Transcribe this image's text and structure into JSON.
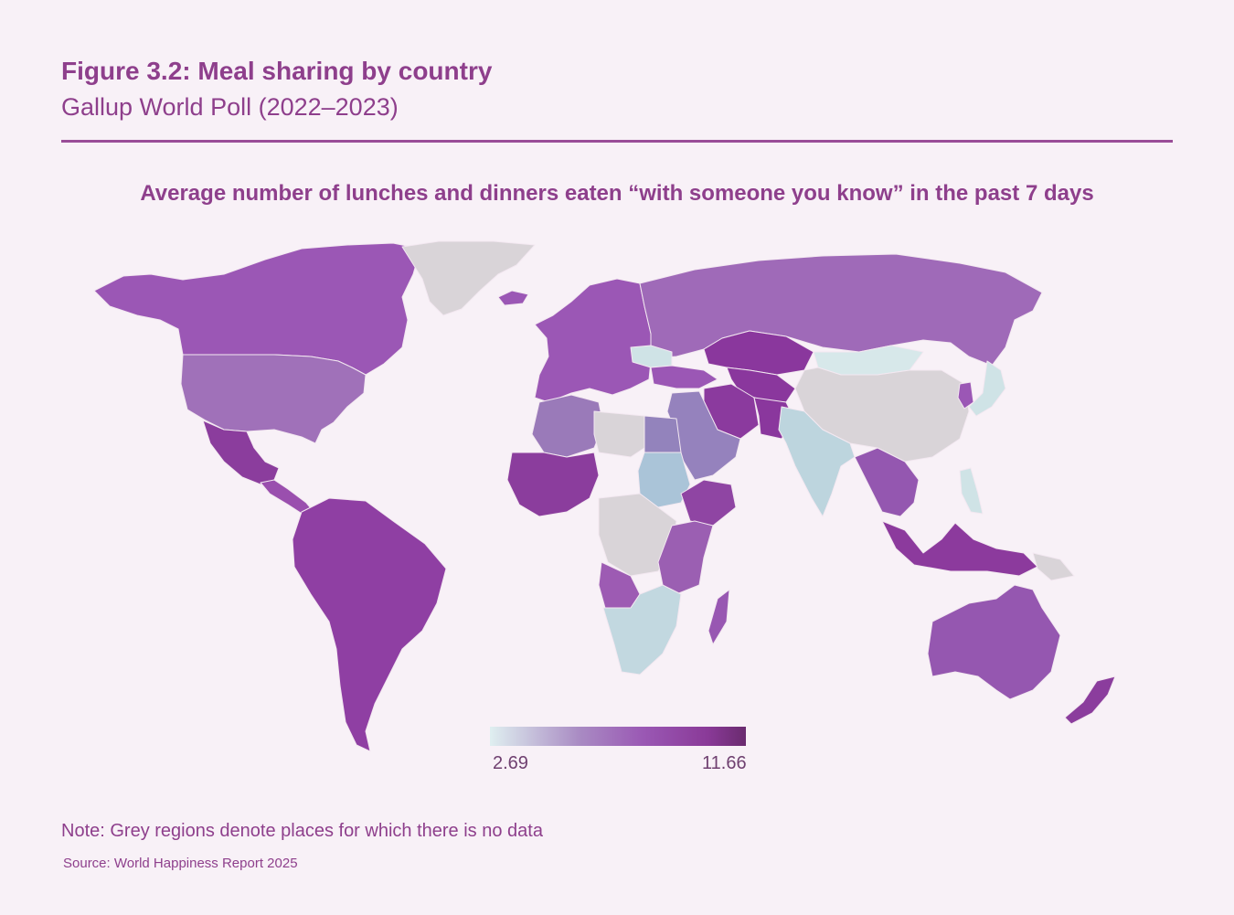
{
  "header": {
    "title": "Figure 3.2: Meal sharing by country",
    "subtitle": "Gallup World Poll (2022–2023)"
  },
  "map": {
    "title": "Average number of lunches and dinners eaten “with someone you know” in the past 7 days",
    "no_data_color": "#d9d4d8",
    "background_color": "#f8f1f7",
    "regions": [
      {
        "name": "Canada",
        "color": "#9b57b5"
      },
      {
        "name": "United States",
        "color": "#a071b9"
      },
      {
        "name": "Mexico",
        "color": "#8b3d9d"
      },
      {
        "name": "Central America",
        "color": "#9a4fae"
      },
      {
        "name": "South America",
        "color": "#8f3fa3"
      },
      {
        "name": "Greenland",
        "color": "#d9d4d8"
      },
      {
        "name": "Europe",
        "color": "#9b57b5"
      },
      {
        "name": "Russia",
        "color": "#9f6ab8"
      },
      {
        "name": "Kazakhstan",
        "color": "#8a379d"
      },
      {
        "name": "Ukraine",
        "color": "#cfe3e6"
      },
      {
        "name": "Mongolia",
        "color": "#d7e8ea"
      },
      {
        "name": "China",
        "color": "#d9d4d8"
      },
      {
        "name": "Iran",
        "color": "#8b3a9e"
      },
      {
        "name": "Arabian Peninsula",
        "color": "#9582bd"
      },
      {
        "name": "Libya",
        "color": "#bdd5de"
      },
      {
        "name": "Egypt",
        "color": "#9457b0"
      },
      {
        "name": "North-west Africa",
        "color": "#9a7ab9"
      },
      {
        "name": "Sudan",
        "color": "#d9d4d8"
      },
      {
        "name": "Ethiopia",
        "color": "#9383bc"
      },
      {
        "name": "Central Africa",
        "color": "#aac4d8"
      },
      {
        "name": "East Africa",
        "color": "#8f45a3"
      },
      {
        "name": "Angola",
        "color": "#d9d4d8"
      },
      {
        "name": "Southern Africa",
        "color": "#9b5fb2"
      },
      {
        "name": "Madagascar",
        "color": "#9d5bb3"
      },
      {
        "name": "India",
        "color": "#c2d8e0"
      },
      {
        "name": "Mainland Southeast Asia",
        "color": "#9857b2"
      },
      {
        "name": "Indonesia",
        "color": "#8c3a9d"
      },
      {
        "name": "Japan",
        "color": "#cfe3e6"
      },
      {
        "name": "Philippines",
        "color": "#cfe3e6"
      },
      {
        "name": "Australia",
        "color": "#9557b0"
      },
      {
        "name": "New Zealand",
        "color": "#8b3d9d"
      }
    ]
  },
  "legend": {
    "min_label": "2.69",
    "max_label": "11.66",
    "min_value": 2.69,
    "max_value": 11.66
  },
  "footer": {
    "note": "Note: Grey regions denote places for which there is no data",
    "source": "Source: World Happiness Report 2025"
  }
}
